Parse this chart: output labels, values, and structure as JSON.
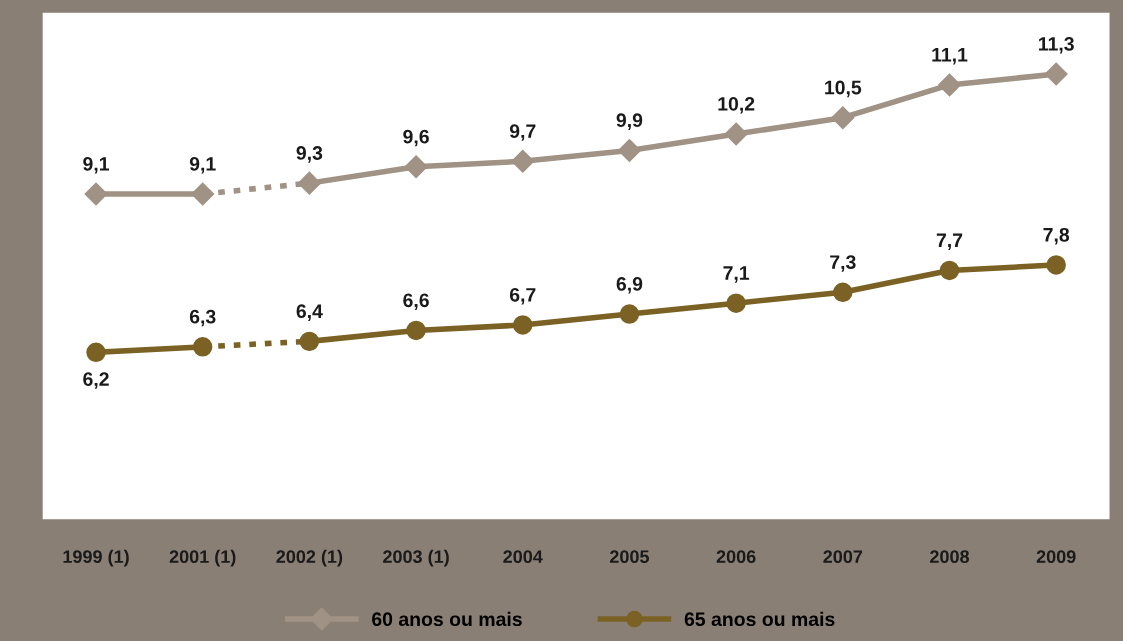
{
  "chart_data": {
    "type": "line",
    "categories": [
      "1999 (1)",
      "2001 (1)",
      "2002 (1)",
      "2003 (1)",
      "2004",
      "2005",
      "2006",
      "2007",
      "2008",
      "2009"
    ],
    "series": [
      {
        "name": "60 anos ou mais",
        "color": "#a09284",
        "marker": "diamond",
        "line_style": "solid",
        "values": [
          9.1,
          9.1,
          null,
          null,
          null,
          null,
          null,
          null,
          null,
          null
        ],
        "value_labels": [
          "9,1",
          "9,1",
          null,
          null,
          null,
          null,
          null,
          null,
          null,
          null
        ]
      },
      {
        "color": "#a09284",
        "marker": "none",
        "line_style": "dotted",
        "values": [
          null,
          9.1,
          9.3,
          null,
          null,
          null,
          null,
          null,
          null,
          null
        ]
      },
      {
        "color": "#a09284",
        "marker": "diamond",
        "line_style": "solid",
        "values": [
          null,
          null,
          9.3,
          9.6,
          9.7,
          9.9,
          10.2,
          10.5,
          11.1,
          11.3
        ],
        "value_labels": [
          null,
          null,
          "9,3",
          "9,6",
          "9,7",
          "9,9",
          "10,2",
          "10,5",
          "11,1",
          "11,3"
        ]
      },
      {
        "name": "65 anos ou mais",
        "color": "#7b6224",
        "marker": "circle",
        "line_style": "solid",
        "values": [
          6.2,
          6.3,
          null,
          null,
          null,
          null,
          null,
          null,
          null,
          null
        ],
        "value_labels": [
          "6,2",
          "6,3",
          null,
          null,
          null,
          null,
          null,
          null,
          null,
          null
        ]
      },
      {
        "color": "#7b6224",
        "marker": "none",
        "line_style": "dotted",
        "values": [
          null,
          6.3,
          6.4,
          null,
          null,
          null,
          null,
          null,
          null,
          null
        ]
      },
      {
        "color": "#7b6224",
        "marker": "circle",
        "line_style": "solid",
        "values": [
          null,
          null,
          6.4,
          6.6,
          6.7,
          6.9,
          7.1,
          7.3,
          7.7,
          7.8
        ],
        "value_labels": [
          null,
          null,
          "6,4",
          "6,6",
          "6,7",
          "6,9",
          "7,1",
          "7,3",
          "7,7",
          "7,8"
        ]
      }
    ],
    "grid": false,
    "legend": "bottom"
  }
}
